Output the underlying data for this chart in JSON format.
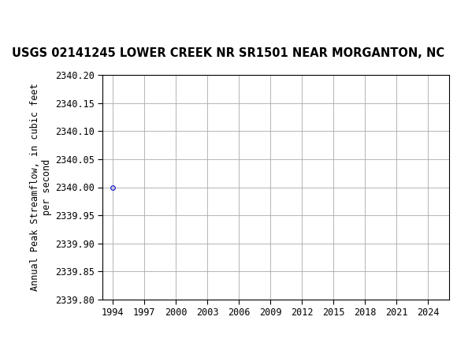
{
  "title": "USGS 02141245 LOWER CREEK NR SR1501 NEAR MORGANTON, NC",
  "ylabel": "Annual Peak Streamflow, in cubic feet\nper second",
  "xlabel": "",
  "data_x": [
    1994
  ],
  "data_y": [
    2340.0
  ],
  "xlim": [
    1993,
    2026
  ],
  "ylim": [
    2339.8,
    2340.2
  ],
  "xticks": [
    1994,
    1997,
    2000,
    2003,
    2006,
    2009,
    2012,
    2015,
    2018,
    2021,
    2024
  ],
  "yticks": [
    2339.8,
    2339.85,
    2339.9,
    2339.95,
    2340.0,
    2340.05,
    2340.1,
    2340.15,
    2340.2
  ],
  "marker_color": "#0000cc",
  "marker_style": "o",
  "marker_size": 4,
  "marker_facecolor": "none",
  "grid_color": "#aaaaaa",
  "plot_bg_color": "#ffffff",
  "fig_bg_color": "#ffffff",
  "title_fontsize": 10.5,
  "label_fontsize": 8.5,
  "tick_fontsize": 8.5,
  "header_bg_color": "#1a6b3c",
  "usgs_text_color": "#ffffff",
  "title_fontweight": "bold"
}
